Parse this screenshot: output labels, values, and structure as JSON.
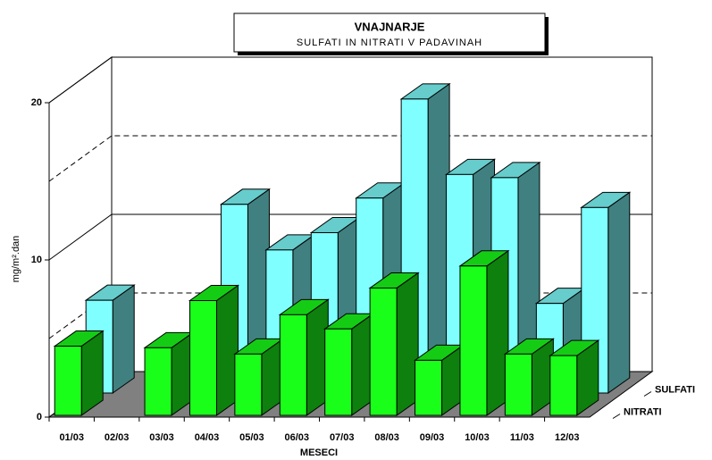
{
  "chart_data": {
    "type": "bar3d",
    "title": "VNAJNARJE",
    "subtitle": "SULFATI IN NITRATI V PADAVINAH",
    "x_label": "MESECI",
    "y_label": "mg/m².dan",
    "categories": [
      "01/03",
      "02/03",
      "03/03",
      "04/03",
      "05/03",
      "06/03",
      "07/03",
      "08/03",
      "09/03",
      "10/03",
      "11/03",
      "12/03"
    ],
    "series": [
      {
        "name": "SULFATI",
        "color": "#7fffff",
        "values": [
          5.9,
          null,
          null,
          12.0,
          9.1,
          10.2,
          12.4,
          18.7,
          13.9,
          13.7,
          5.7,
          11.8
        ]
      },
      {
        "name": "NITRATI",
        "color": "#1aff1a",
        "values": [
          4.4,
          null,
          4.3,
          7.3,
          3.9,
          6.4,
          5.5,
          8.1,
          3.5,
          9.5,
          3.9,
          3.8
        ]
      }
    ],
    "ylim": [
      0,
      20
    ],
    "yticks": [
      0,
      10,
      20
    ],
    "minor_yticks": [
      5,
      15
    ]
  }
}
